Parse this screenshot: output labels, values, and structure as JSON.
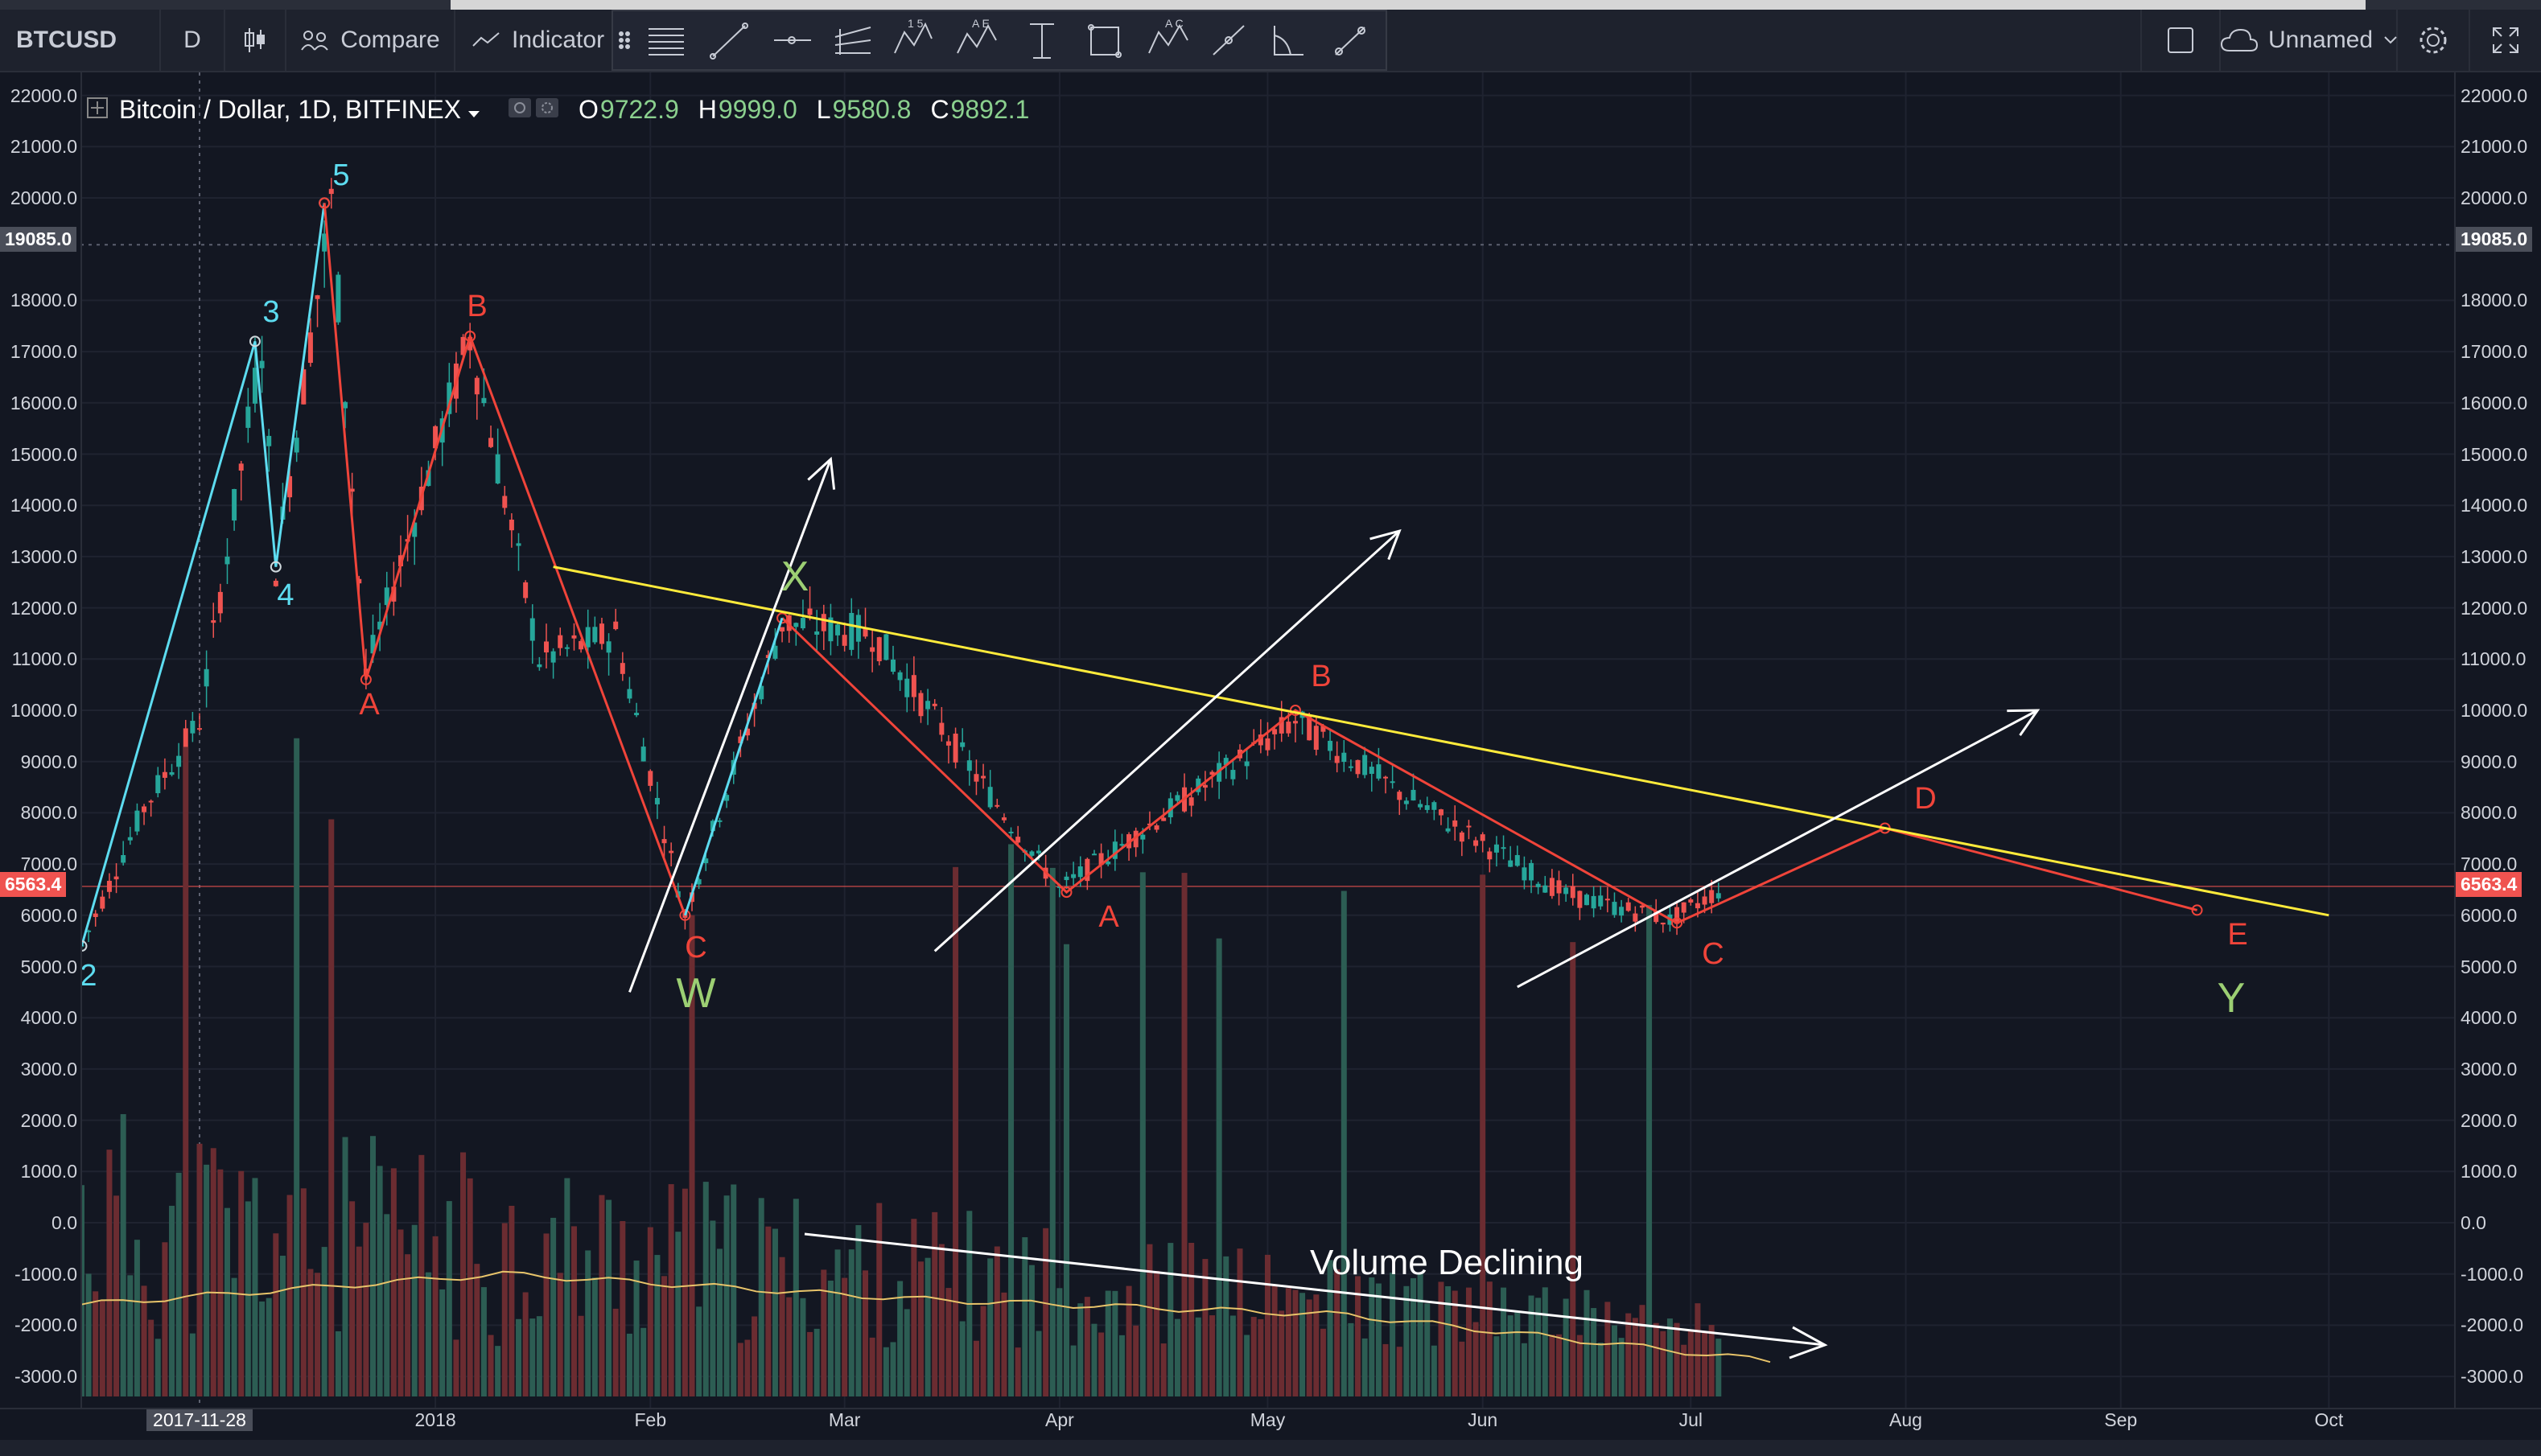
{
  "toolbar": {
    "symbol": "BTCUSD",
    "interval": "D",
    "compare_label": "Compare",
    "indicators_label": "Indicator",
    "layout_name": "Unnamed",
    "colors": {
      "bg": "#1e222d",
      "border": "#2a2e39"
    }
  },
  "legend": {
    "title": "Bitcoin / Dollar, 1D, BITFINEX",
    "open_label": "O",
    "open": "9722.9",
    "high_label": "H",
    "high": "9999.0",
    "low_label": "L",
    "low": "9580.8",
    "close_label": "C",
    "close": "9892.1"
  },
  "crosshair_price": "19085.0",
  "last_price": "6563.4",
  "price_ticks": [
    "22000.0",
    "21000.0",
    "20000.0",
    "18000.0",
    "17000.0",
    "16000.0",
    "15000.0",
    "14000.0",
    "13000.0",
    "12000.0",
    "11000.0",
    "10000.0",
    "9000.0",
    "8000.0",
    "7000.0",
    "6000.0",
    "5000.0",
    "4000.0",
    "3000.0",
    "2000.0",
    "1000.0",
    "0.0",
    "-1000.0",
    "-2000.0",
    "-3000.0"
  ],
  "time_axis": {
    "crosshair_date": "2017-11-28",
    "labels": [
      "2018",
      "Feb",
      "Mar",
      "Apr",
      "May",
      "Jun",
      "Jul",
      "Aug",
      "Sep",
      "Oct"
    ]
  },
  "annotations": {
    "wave_labels_cyan": [
      "2",
      "3",
      "4",
      "5"
    ],
    "wave_labels_red": [
      "A",
      "B",
      "C",
      "X",
      "A",
      "B",
      "C",
      "D",
      "E"
    ],
    "wave_labels_green": [
      "W",
      "X",
      "Y"
    ],
    "volume_note": "Volume Declining"
  },
  "chart_data": {
    "type": "line",
    "title": "Bitcoin / Dollar, 1D, BITFINEX",
    "xlabel": "",
    "ylabel": "",
    "ylim": [
      -3500,
      22500
    ],
    "grid": true,
    "series": [
      {
        "points": [
          {
            "x": "2017-11-11",
            "y": 5400
          },
          {
            "x": "2017-11-20",
            "y": 8100
          },
          {
            "x": "2017-11-28",
            "y": 9800
          },
          {
            "x": "2017-12-07",
            "y": 17200
          },
          {
            "x": "2017-12-09",
            "y": 12800
          },
          {
            "x": "2017-12-17",
            "y": 19900
          },
          {
            "x": "2017-12-22",
            "y": 10700
          },
          {
            "x": "2018-01-06",
            "y": 17300
          },
          {
            "x": "2018-01-16",
            "y": 11000
          },
          {
            "x": "2018-01-27",
            "y": 11500
          },
          {
            "x": "2018-02-06",
            "y": 6000
          },
          {
            "x": "2018-02-20",
            "y": 11700
          },
          {
            "x": "2018-03-05",
            "y": 11500
          },
          {
            "x": "2018-04-01",
            "y": 6500
          },
          {
            "x": "2018-05-05",
            "y": 9800
          },
          {
            "x": "2018-05-20",
            "y": 8400
          },
          {
            "x": "2018-06-13",
            "y": 6400
          },
          {
            "x": "2018-06-28",
            "y": 5900
          },
          {
            "x": "2018-07-06",
            "y": 6563
          }
        ]
      }
    ],
    "trend_lines": [
      {
        "color": "#ffeb3b",
        "from": {
          "x": "2018-01-18",
          "y": 12800
        },
        "to": {
          "x": "2018-10-01",
          "y": 6000
        }
      },
      {
        "color": "#ffffff",
        "from": {
          "x": "2018-01-29",
          "y": 4500
        },
        "to": {
          "x": "2018-02-27",
          "y": 14900
        }
      },
      {
        "color": "#ffffff",
        "from": {
          "x": "2018-03-14",
          "y": 5300
        },
        "to": {
          "x": "2018-05-20",
          "y": 13500
        }
      },
      {
        "color": "#ffffff",
        "from": {
          "x": "2018-06-06",
          "y": 4600
        },
        "to": {
          "x": "2018-08-20",
          "y": 10000
        }
      }
    ],
    "volume_average_y": [
      -1600,
      -1000,
      -1500,
      -1800,
      -2700
    ]
  },
  "colors": {
    "bg": "#131722",
    "up": "#26a69a",
    "down": "#ef5350",
    "cyan_wave": "#5ddcf0",
    "red_wave": "#f0443a",
    "yellow_trend": "#f3ef4a",
    "green_label": "#9ccf73",
    "volume_avg": "#e8c46a"
  }
}
